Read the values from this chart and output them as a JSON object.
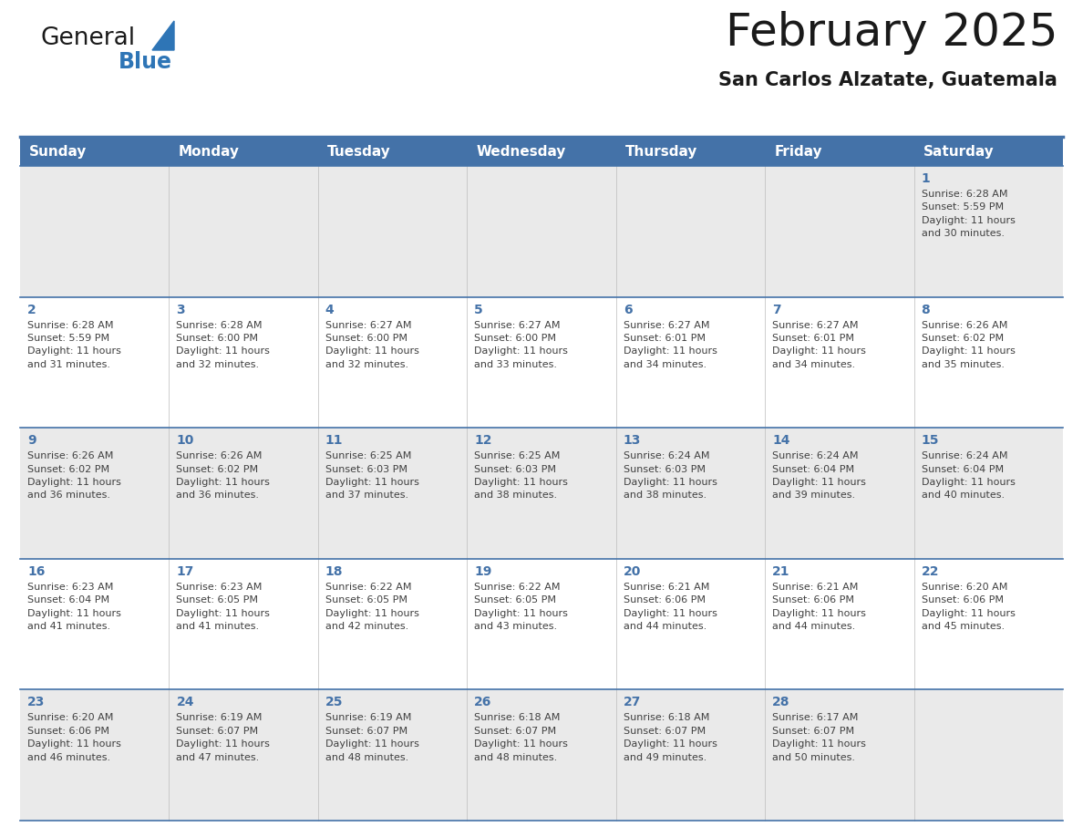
{
  "title": "February 2025",
  "subtitle": "San Carlos Alzatate, Guatemala",
  "header_bg": "#4472A8",
  "header_text": "#FFFFFF",
  "cell_bg_light": "#EAEAEA",
  "cell_bg_white": "#FFFFFF",
  "line_color": "#4472A8",
  "day_number_color": "#4472A8",
  "info_text_color": "#404040",
  "days_of_week": [
    "Sunday",
    "Monday",
    "Tuesday",
    "Wednesday",
    "Thursday",
    "Friday",
    "Saturday"
  ],
  "weeks": [
    [
      {
        "day": null,
        "info": null
      },
      {
        "day": null,
        "info": null
      },
      {
        "day": null,
        "info": null
      },
      {
        "day": null,
        "info": null
      },
      {
        "day": null,
        "info": null
      },
      {
        "day": null,
        "info": null
      },
      {
        "day": 1,
        "info": "Sunrise: 6:28 AM\nSunset: 5:59 PM\nDaylight: 11 hours\nand 30 minutes."
      }
    ],
    [
      {
        "day": 2,
        "info": "Sunrise: 6:28 AM\nSunset: 5:59 PM\nDaylight: 11 hours\nand 31 minutes."
      },
      {
        "day": 3,
        "info": "Sunrise: 6:28 AM\nSunset: 6:00 PM\nDaylight: 11 hours\nand 32 minutes."
      },
      {
        "day": 4,
        "info": "Sunrise: 6:27 AM\nSunset: 6:00 PM\nDaylight: 11 hours\nand 32 minutes."
      },
      {
        "day": 5,
        "info": "Sunrise: 6:27 AM\nSunset: 6:00 PM\nDaylight: 11 hours\nand 33 minutes."
      },
      {
        "day": 6,
        "info": "Sunrise: 6:27 AM\nSunset: 6:01 PM\nDaylight: 11 hours\nand 34 minutes."
      },
      {
        "day": 7,
        "info": "Sunrise: 6:27 AM\nSunset: 6:01 PM\nDaylight: 11 hours\nand 34 minutes."
      },
      {
        "day": 8,
        "info": "Sunrise: 6:26 AM\nSunset: 6:02 PM\nDaylight: 11 hours\nand 35 minutes."
      }
    ],
    [
      {
        "day": 9,
        "info": "Sunrise: 6:26 AM\nSunset: 6:02 PM\nDaylight: 11 hours\nand 36 minutes."
      },
      {
        "day": 10,
        "info": "Sunrise: 6:26 AM\nSunset: 6:02 PM\nDaylight: 11 hours\nand 36 minutes."
      },
      {
        "day": 11,
        "info": "Sunrise: 6:25 AM\nSunset: 6:03 PM\nDaylight: 11 hours\nand 37 minutes."
      },
      {
        "day": 12,
        "info": "Sunrise: 6:25 AM\nSunset: 6:03 PM\nDaylight: 11 hours\nand 38 minutes."
      },
      {
        "day": 13,
        "info": "Sunrise: 6:24 AM\nSunset: 6:03 PM\nDaylight: 11 hours\nand 38 minutes."
      },
      {
        "day": 14,
        "info": "Sunrise: 6:24 AM\nSunset: 6:04 PM\nDaylight: 11 hours\nand 39 minutes."
      },
      {
        "day": 15,
        "info": "Sunrise: 6:24 AM\nSunset: 6:04 PM\nDaylight: 11 hours\nand 40 minutes."
      }
    ],
    [
      {
        "day": 16,
        "info": "Sunrise: 6:23 AM\nSunset: 6:04 PM\nDaylight: 11 hours\nand 41 minutes."
      },
      {
        "day": 17,
        "info": "Sunrise: 6:23 AM\nSunset: 6:05 PM\nDaylight: 11 hours\nand 41 minutes."
      },
      {
        "day": 18,
        "info": "Sunrise: 6:22 AM\nSunset: 6:05 PM\nDaylight: 11 hours\nand 42 minutes."
      },
      {
        "day": 19,
        "info": "Sunrise: 6:22 AM\nSunset: 6:05 PM\nDaylight: 11 hours\nand 43 minutes."
      },
      {
        "day": 20,
        "info": "Sunrise: 6:21 AM\nSunset: 6:06 PM\nDaylight: 11 hours\nand 44 minutes."
      },
      {
        "day": 21,
        "info": "Sunrise: 6:21 AM\nSunset: 6:06 PM\nDaylight: 11 hours\nand 44 minutes."
      },
      {
        "day": 22,
        "info": "Sunrise: 6:20 AM\nSunset: 6:06 PM\nDaylight: 11 hours\nand 45 minutes."
      }
    ],
    [
      {
        "day": 23,
        "info": "Sunrise: 6:20 AM\nSunset: 6:06 PM\nDaylight: 11 hours\nand 46 minutes."
      },
      {
        "day": 24,
        "info": "Sunrise: 6:19 AM\nSunset: 6:07 PM\nDaylight: 11 hours\nand 47 minutes."
      },
      {
        "day": 25,
        "info": "Sunrise: 6:19 AM\nSunset: 6:07 PM\nDaylight: 11 hours\nand 48 minutes."
      },
      {
        "day": 26,
        "info": "Sunrise: 6:18 AM\nSunset: 6:07 PM\nDaylight: 11 hours\nand 48 minutes."
      },
      {
        "day": 27,
        "info": "Sunrise: 6:18 AM\nSunset: 6:07 PM\nDaylight: 11 hours\nand 49 minutes."
      },
      {
        "day": 28,
        "info": "Sunrise: 6:17 AM\nSunset: 6:07 PM\nDaylight: 11 hours\nand 50 minutes."
      },
      {
        "day": null,
        "info": null
      }
    ]
  ],
  "fig_width": 11.88,
  "fig_height": 9.18,
  "logo_text_general": "General",
  "logo_text_blue": "Blue",
  "logo_color": "#2E75B6",
  "logo_triangle_color": "#2E75B6",
  "title_fontsize": 36,
  "subtitle_fontsize": 15,
  "day_header_fontsize": 11,
  "day_number_fontsize": 10,
  "info_fontsize": 8.0
}
